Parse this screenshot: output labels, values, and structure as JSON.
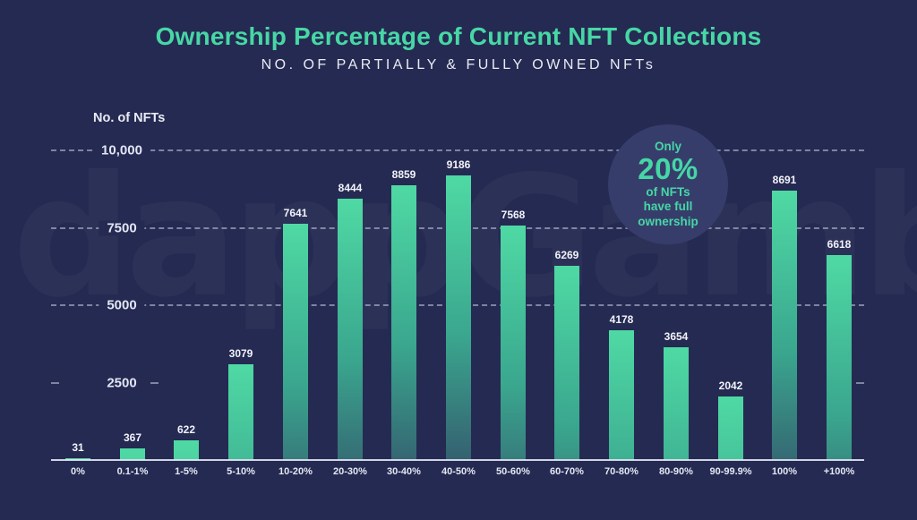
{
  "page": {
    "background": "#252a52"
  },
  "header": {
    "title": "Ownership Percentage of Current NFT Collections",
    "subtitle": "NO. OF PARTIALLY & FULLY OWNED NFTs",
    "title_color": "#47d7a5"
  },
  "watermark": {
    "text": "dappGambl"
  },
  "badge": {
    "lines": [
      "Only",
      "20%",
      "of NFTs",
      "have full",
      "ownership"
    ],
    "text_color": "#45d7a6",
    "fill_color": "#373d6b"
  },
  "chart_data": {
    "type": "bar",
    "title": "Ownership Percentage of Current NFT Collections",
    "subtitle": "No. of partially & fully owned NFTs",
    "ylabel": "No. of NFTs",
    "xlabel": "",
    "categories": [
      "0%",
      "0.1-1%",
      "1-5%",
      "5-10%",
      "10-20%",
      "20-30%",
      "30-40%",
      "40-50%",
      "50-60%",
      "60-70%",
      "70-80%",
      "80-90%",
      "90-99.9%",
      "100%",
      "+100%"
    ],
    "values": [
      31,
      367,
      622,
      3079,
      7641,
      8444,
      8859,
      9186,
      7568,
      6269,
      4178,
      3654,
      2042,
      8691,
      6618
    ],
    "ylim": [
      0,
      10000
    ],
    "yticks": [
      2500,
      5000,
      7500,
      10000
    ],
    "ytick_labels": [
      "2500",
      "5000",
      "7500",
      "10,000"
    ],
    "grid": "dashed horizontal gridlines",
    "legend": "none",
    "bar_gradient_top": "#4fd9a4",
    "bar_gradient_bottom": "#33536a",
    "annotation": "Only 20% of NFTs have full ownership"
  }
}
